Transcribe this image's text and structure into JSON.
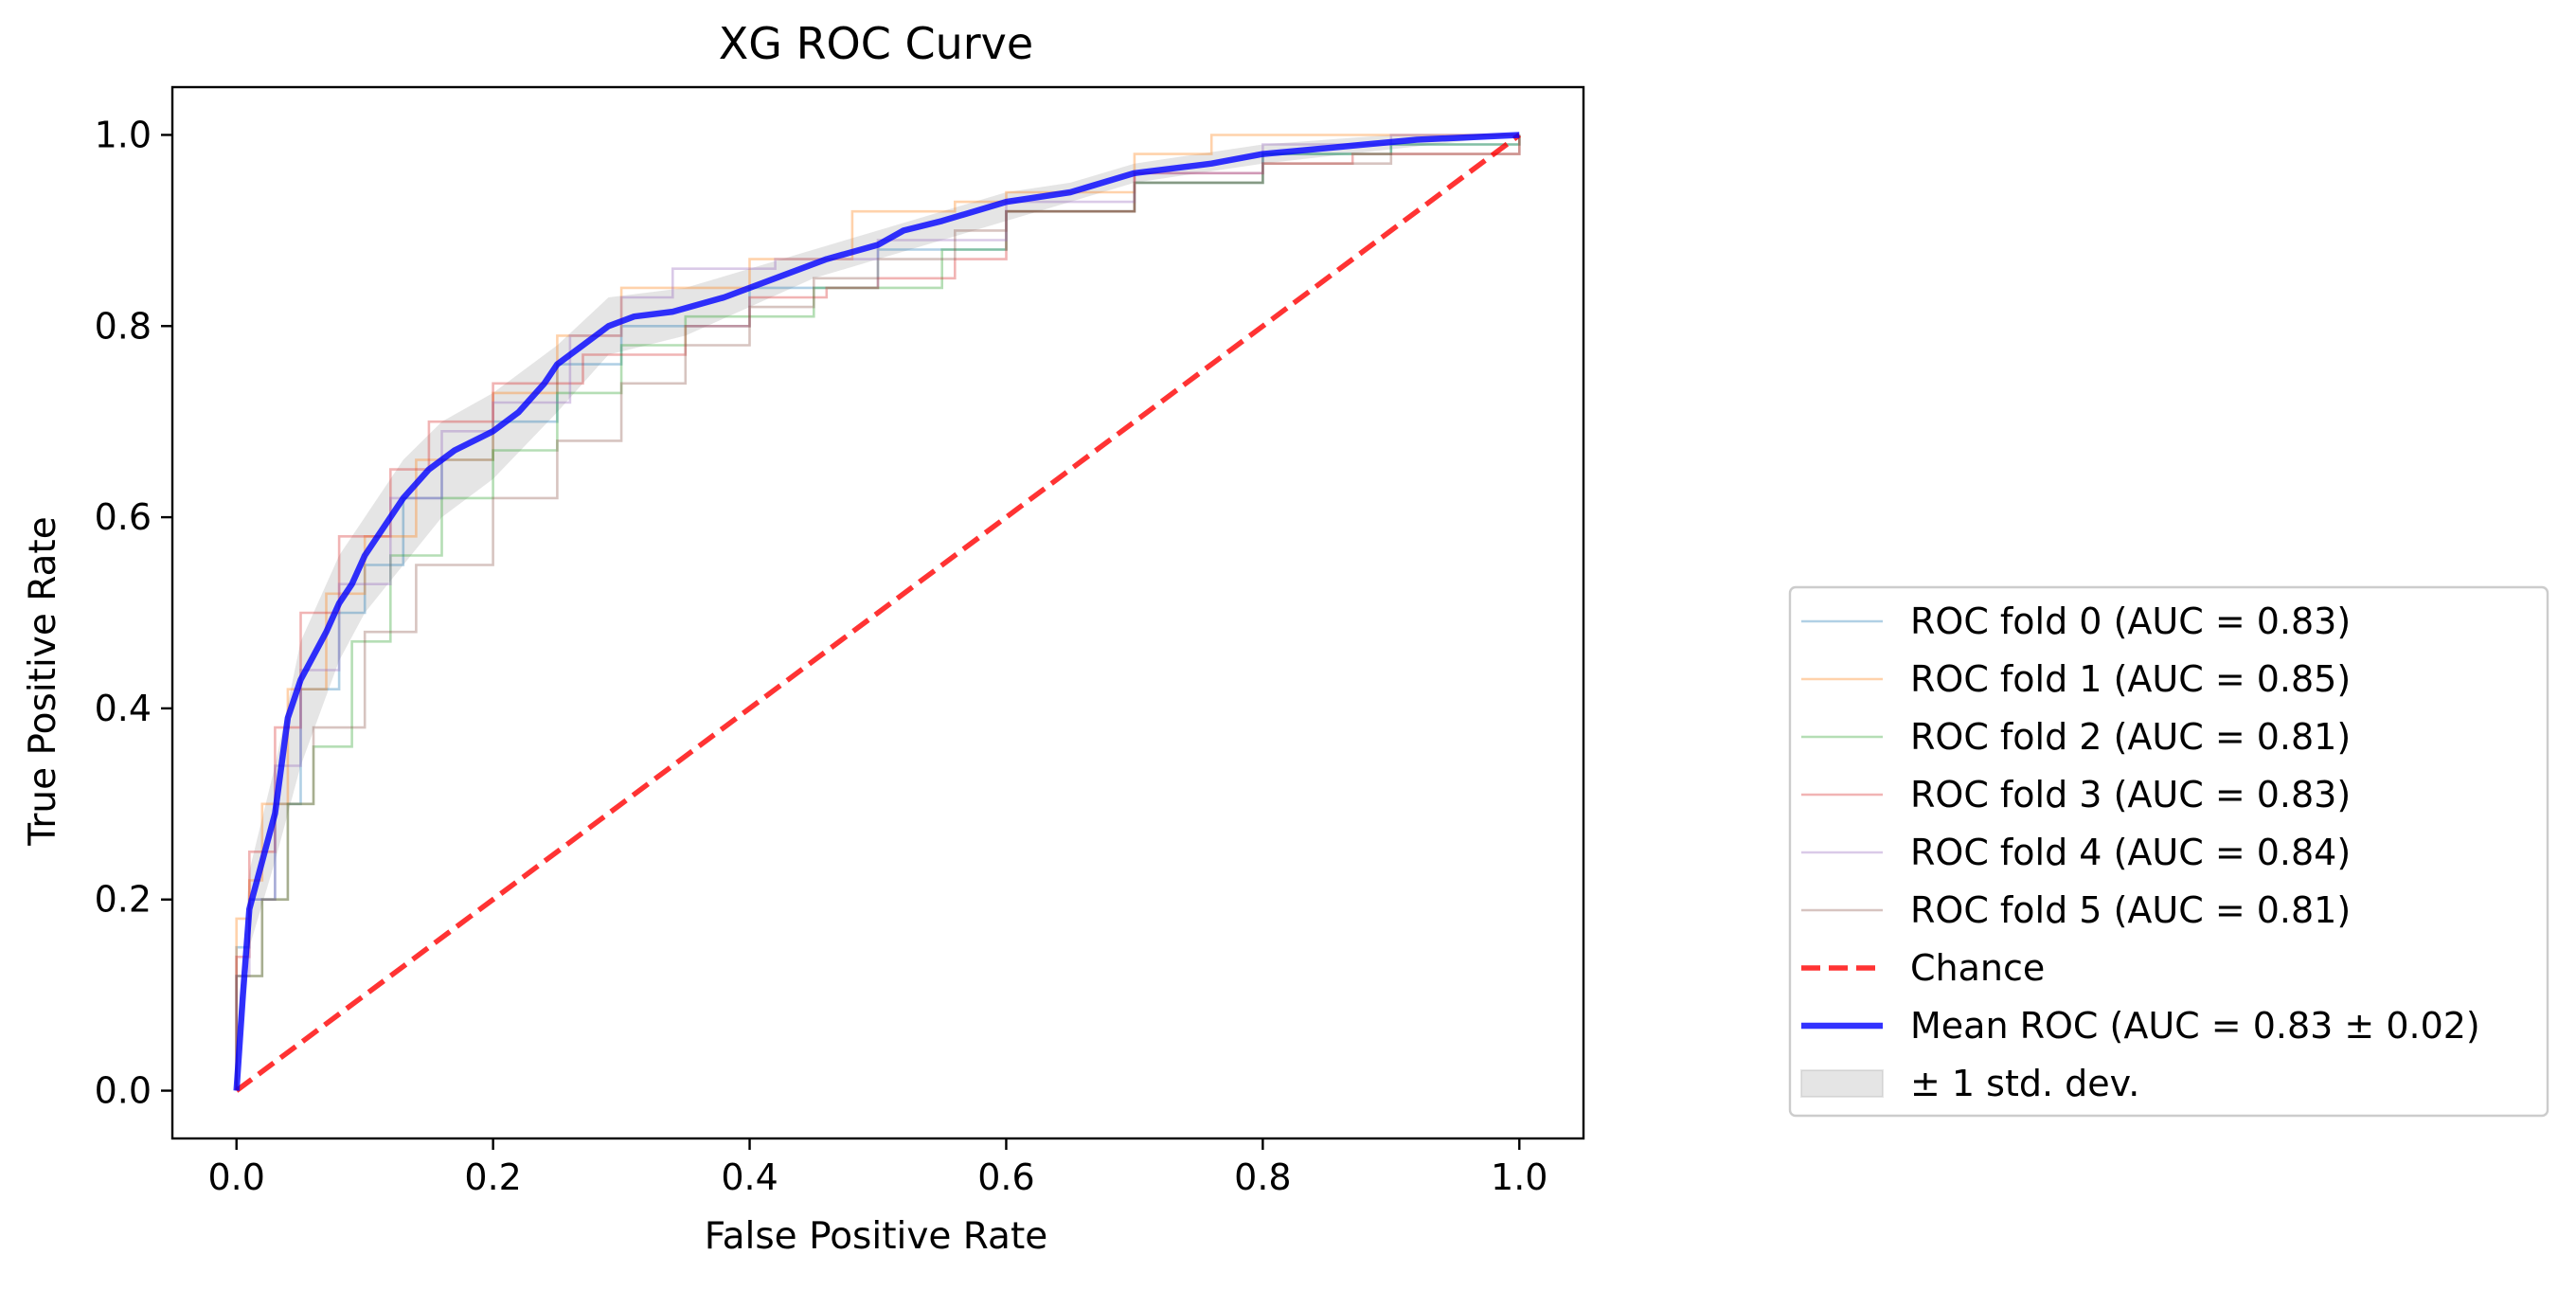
{
  "chart_data": {
    "type": "line",
    "title": "XG ROC Curve",
    "xlabel": "False Positive Rate",
    "ylabel": "True Positive Rate",
    "xlim": [
      -0.05,
      1.05
    ],
    "ylim": [
      -0.05,
      1.05
    ],
    "xticks": [
      "0.0",
      "0.2",
      "0.4",
      "0.6",
      "0.8",
      "1.0"
    ],
    "yticks": [
      "0.0",
      "0.2",
      "0.4",
      "0.6",
      "0.8",
      "1.0"
    ],
    "grid": false,
    "legend_position": "outside right, lower",
    "fold_series": [
      {
        "name": "ROC fold 0 (AUC = 0.83)",
        "color": "#1f77b4",
        "points": [
          [
            0,
            0
          ],
          [
            0,
            0.15
          ],
          [
            0.01,
            0.2
          ],
          [
            0.03,
            0.3
          ],
          [
            0.05,
            0.42
          ],
          [
            0.08,
            0.5
          ],
          [
            0.1,
            0.55
          ],
          [
            0.13,
            0.62
          ],
          [
            0.16,
            0.66
          ],
          [
            0.2,
            0.7
          ],
          [
            0.25,
            0.76
          ],
          [
            0.3,
            0.8
          ],
          [
            0.4,
            0.84
          ],
          [
            0.5,
            0.88
          ],
          [
            0.6,
            0.92
          ],
          [
            0.7,
            0.95
          ],
          [
            0.8,
            0.98
          ],
          [
            0.9,
            0.99
          ],
          [
            1,
            1
          ]
        ]
      },
      {
        "name": "ROC fold 1 (AUC = 0.85)",
        "color": "#ff7f0e",
        "points": [
          [
            0,
            0
          ],
          [
            0,
            0.18
          ],
          [
            0.01,
            0.22
          ],
          [
            0.02,
            0.3
          ],
          [
            0.04,
            0.42
          ],
          [
            0.07,
            0.52
          ],
          [
            0.1,
            0.58
          ],
          [
            0.14,
            0.66
          ],
          [
            0.2,
            0.73
          ],
          [
            0.25,
            0.79
          ],
          [
            0.3,
            0.84
          ],
          [
            0.4,
            0.87
          ],
          [
            0.48,
            0.92
          ],
          [
            0.56,
            0.93
          ],
          [
            0.6,
            0.94
          ],
          [
            0.7,
            0.98
          ],
          [
            0.76,
            1
          ],
          [
            1,
            1
          ]
        ]
      },
      {
        "name": "ROC fold 2 (AUC = 0.81)",
        "color": "#2ca02c",
        "points": [
          [
            0,
            0
          ],
          [
            0,
            0.12
          ],
          [
            0.02,
            0.2
          ],
          [
            0.04,
            0.3
          ],
          [
            0.06,
            0.36
          ],
          [
            0.09,
            0.47
          ],
          [
            0.12,
            0.56
          ],
          [
            0.16,
            0.62
          ],
          [
            0.2,
            0.67
          ],
          [
            0.25,
            0.73
          ],
          [
            0.3,
            0.78
          ],
          [
            0.35,
            0.81
          ],
          [
            0.45,
            0.84
          ],
          [
            0.55,
            0.88
          ],
          [
            0.6,
            0.92
          ],
          [
            0.7,
            0.95
          ],
          [
            0.8,
            0.98
          ],
          [
            0.9,
            0.99
          ],
          [
            1,
            1
          ]
        ]
      },
      {
        "name": "ROC fold 3 (AUC = 0.83)",
        "color": "#d62728",
        "points": [
          [
            0,
            0
          ],
          [
            0,
            0.14
          ],
          [
            0.01,
            0.25
          ],
          [
            0.03,
            0.38
          ],
          [
            0.05,
            0.5
          ],
          [
            0.08,
            0.58
          ],
          [
            0.12,
            0.65
          ],
          [
            0.15,
            0.7
          ],
          [
            0.2,
            0.74
          ],
          [
            0.27,
            0.77
          ],
          [
            0.35,
            0.8
          ],
          [
            0.4,
            0.83
          ],
          [
            0.46,
            0.84
          ],
          [
            0.5,
            0.85
          ],
          [
            0.56,
            0.87
          ],
          [
            0.6,
            0.92
          ],
          [
            0.7,
            0.96
          ],
          [
            0.8,
            0.97
          ],
          [
            0.87,
            0.98
          ],
          [
            1,
            1
          ]
        ]
      },
      {
        "name": "ROC fold 4 (AUC = 0.84)",
        "color": "#9467bd",
        "points": [
          [
            0,
            0
          ],
          [
            0,
            0.12
          ],
          [
            0.01,
            0.2
          ],
          [
            0.03,
            0.34
          ],
          [
            0.05,
            0.44
          ],
          [
            0.08,
            0.53
          ],
          [
            0.12,
            0.62
          ],
          [
            0.16,
            0.69
          ],
          [
            0.2,
            0.72
          ],
          [
            0.26,
            0.79
          ],
          [
            0.3,
            0.83
          ],
          [
            0.34,
            0.86
          ],
          [
            0.42,
            0.87
          ],
          [
            0.5,
            0.89
          ],
          [
            0.6,
            0.93
          ],
          [
            0.7,
            0.96
          ],
          [
            0.8,
            0.99
          ],
          [
            0.9,
            1
          ],
          [
            1,
            1
          ]
        ]
      },
      {
        "name": "ROC fold 5 (AUC = 0.81)",
        "color": "#8c564b",
        "points": [
          [
            0,
            0
          ],
          [
            0,
            0.12
          ],
          [
            0.02,
            0.2
          ],
          [
            0.04,
            0.3
          ],
          [
            0.06,
            0.38
          ],
          [
            0.1,
            0.48
          ],
          [
            0.14,
            0.55
          ],
          [
            0.2,
            0.62
          ],
          [
            0.25,
            0.68
          ],
          [
            0.3,
            0.74
          ],
          [
            0.35,
            0.78
          ],
          [
            0.4,
            0.82
          ],
          [
            0.45,
            0.85
          ],
          [
            0.5,
            0.87
          ],
          [
            0.56,
            0.9
          ],
          [
            0.6,
            0.92
          ],
          [
            0.7,
            0.95
          ],
          [
            0.8,
            0.97
          ],
          [
            0.9,
            0.98
          ],
          [
            1,
            1
          ]
        ]
      }
    ],
    "chance": {
      "name": "Chance",
      "color": "#ff0000",
      "points": [
        [
          0,
          0
        ],
        [
          1,
          1
        ]
      ]
    },
    "mean": {
      "name": "Mean ROC (AUC = 0.83 ± 0.02)",
      "color": "#0000ff",
      "points": [
        [
          0,
          0
        ],
        [
          0.005,
          0.1
        ],
        [
          0.01,
          0.19
        ],
        [
          0.03,
          0.29
        ],
        [
          0.04,
          0.39
        ],
        [
          0.05,
          0.43
        ],
        [
          0.07,
          0.48
        ],
        [
          0.08,
          0.51
        ],
        [
          0.09,
          0.53
        ],
        [
          0.1,
          0.56
        ],
        [
          0.12,
          0.6
        ],
        [
          0.13,
          0.62
        ],
        [
          0.15,
          0.65
        ],
        [
          0.17,
          0.67
        ],
        [
          0.2,
          0.69
        ],
        [
          0.22,
          0.71
        ],
        [
          0.24,
          0.74
        ],
        [
          0.25,
          0.76
        ],
        [
          0.27,
          0.78
        ],
        [
          0.29,
          0.8
        ],
        [
          0.31,
          0.81
        ],
        [
          0.34,
          0.815
        ],
        [
          0.38,
          0.83
        ],
        [
          0.42,
          0.85
        ],
        [
          0.46,
          0.87
        ],
        [
          0.5,
          0.885
        ],
        [
          0.52,
          0.9
        ],
        [
          0.55,
          0.91
        ],
        [
          0.6,
          0.93
        ],
        [
          0.65,
          0.94
        ],
        [
          0.7,
          0.96
        ],
        [
          0.76,
          0.97
        ],
        [
          0.8,
          0.98
        ],
        [
          0.84,
          0.985
        ],
        [
          0.88,
          0.99
        ],
        [
          0.92,
          0.995
        ],
        [
          1,
          1
        ]
      ]
    },
    "std_band": {
      "name": "± 1 std. dev.",
      "color": "#a9a9a9",
      "upper": [
        [
          0,
          0.05
        ],
        [
          0.01,
          0.23
        ],
        [
          0.03,
          0.34
        ],
        [
          0.05,
          0.47
        ],
        [
          0.08,
          0.56
        ],
        [
          0.1,
          0.6
        ],
        [
          0.13,
          0.66
        ],
        [
          0.16,
          0.7
        ],
        [
          0.2,
          0.73
        ],
        [
          0.25,
          0.78
        ],
        [
          0.29,
          0.83
        ],
        [
          0.35,
          0.84
        ],
        [
          0.4,
          0.86
        ],
        [
          0.45,
          0.88
        ],
        [
          0.5,
          0.9
        ],
        [
          0.55,
          0.92
        ],
        [
          0.6,
          0.94
        ],
        [
          0.65,
          0.95
        ],
        [
          0.7,
          0.97
        ],
        [
          0.8,
          0.99
        ],
        [
          0.9,
          1
        ],
        [
          1,
          1
        ]
      ],
      "lower": [
        [
          0,
          0
        ],
        [
          0.01,
          0.15
        ],
        [
          0.03,
          0.24
        ],
        [
          0.05,
          0.34
        ],
        [
          0.08,
          0.45
        ],
        [
          0.1,
          0.5
        ],
        [
          0.13,
          0.55
        ],
        [
          0.16,
          0.6
        ],
        [
          0.2,
          0.64
        ],
        [
          0.25,
          0.71
        ],
        [
          0.29,
          0.77
        ],
        [
          0.35,
          0.79
        ],
        [
          0.4,
          0.82
        ],
        [
          0.45,
          0.85
        ],
        [
          0.5,
          0.87
        ],
        [
          0.55,
          0.89
        ],
        [
          0.6,
          0.91
        ],
        [
          0.65,
          0.93
        ],
        [
          0.7,
          0.95
        ],
        [
          0.8,
          0.97
        ],
        [
          0.9,
          0.985
        ],
        [
          1,
          1
        ]
      ]
    }
  }
}
